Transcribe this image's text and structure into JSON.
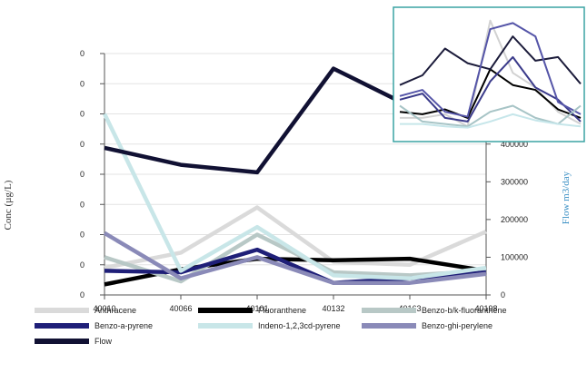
{
  "chart_data": [
    {
      "type": "line",
      "x_categories": [
        "40010",
        "40066",
        "40101",
        "40132",
        "40163",
        "40198"
      ],
      "ylabel_left": "Conc (µg/L)",
      "ylabel_right": "Flow m3/day",
      "left_ticks": [
        "0",
        "0",
        "0",
        "0",
        "0",
        "0",
        "0",
        "0",
        "0"
      ],
      "ylim_left": [
        0,
        0.8
      ],
      "ylim_right": [
        0,
        640000
      ],
      "right_ticks": [
        "0",
        "100000",
        "200000",
        "300000",
        "400000"
      ],
      "series": [
        {
          "name": "Anthracene",
          "axis": "left",
          "color": "#dadada",
          "values": [
            0.09,
            0.14,
            0.29,
            0.11,
            0.1,
            0.21
          ]
        },
        {
          "name": "Fluoranthene",
          "axis": "left",
          "color": "#000000",
          "values": [
            0.035,
            0.085,
            0.12,
            0.115,
            0.12,
            0.08
          ]
        },
        {
          "name": "Benzo-b/k-fluoranthene",
          "axis": "left",
          "color": "#b8c8c6",
          "values": [
            0.125,
            0.045,
            0.2,
            0.075,
            0.065,
            0.08
          ]
        },
        {
          "name": "Benzo-a-pyrene",
          "axis": "left",
          "color": "#1f1f78",
          "values": [
            0.08,
            0.075,
            0.15,
            0.04,
            0.055,
            0.075
          ]
        },
        {
          "name": "Indeno-1,2,3cd-pyrene",
          "axis": "left",
          "color": "#c8e6e8",
          "values": [
            0.6,
            0.08,
            0.225,
            0.065,
            0.055,
            0.09
          ]
        },
        {
          "name": "Benzo-ghi-perylene",
          "axis": "left",
          "color": "#8a8ab8",
          "values": [
            0.205,
            0.055,
            0.125,
            0.04,
            0.04,
            0.07
          ]
        },
        {
          "name": "Flow",
          "axis": "right",
          "color": "#111133",
          "values": [
            390000,
            345000,
            325000,
            600000,
            500000,
            470000
          ]
        }
      ],
      "legend_position": "bottom"
    },
    {
      "type": "line",
      "description": "inset chart, top-right",
      "x_points": 9,
      "series": [
        {
          "name": "Anthracene",
          "color": "#d2d2d2",
          "values": [
            0.15,
            0.15,
            0.18,
            0.08,
            0.95,
            0.52,
            0.4,
            0.2,
            0.1
          ]
        },
        {
          "name": "Fluoranthene",
          "color": "#000000",
          "values": [
            0.2,
            0.18,
            0.22,
            0.15,
            0.55,
            0.42,
            0.38,
            0.22,
            0.15
          ]
        },
        {
          "name": "Flow",
          "color": "#1b1b3a",
          "values": [
            0.42,
            0.5,
            0.72,
            0.6,
            0.55,
            0.82,
            0.62,
            0.65,
            0.43
          ]
        },
        {
          "name": "Benzo-a-pyrene",
          "color": "#3a3a8a",
          "values": [
            0.3,
            0.35,
            0.15,
            0.12,
            0.45,
            0.65,
            0.4,
            0.3,
            0.12
          ]
        },
        {
          "name": "Benzo-ghi-perylene",
          "color": "#5555a8",
          "values": [
            0.33,
            0.38,
            0.2,
            0.16,
            0.88,
            0.93,
            0.82,
            0.28,
            0.18
          ]
        },
        {
          "name": "Benzo-b/k-fluoranthene",
          "color": "#a7c4c6",
          "values": [
            0.25,
            0.12,
            0.1,
            0.08,
            0.2,
            0.25,
            0.15,
            0.1,
            0.25
          ]
        },
        {
          "name": "Indeno-1,2,3cd-pyrene",
          "color": "#c6e6ea",
          "values": [
            0.1,
            0.1,
            0.08,
            0.07,
            0.12,
            0.18,
            0.13,
            0.1,
            0.08
          ]
        }
      ]
    }
  ]
}
